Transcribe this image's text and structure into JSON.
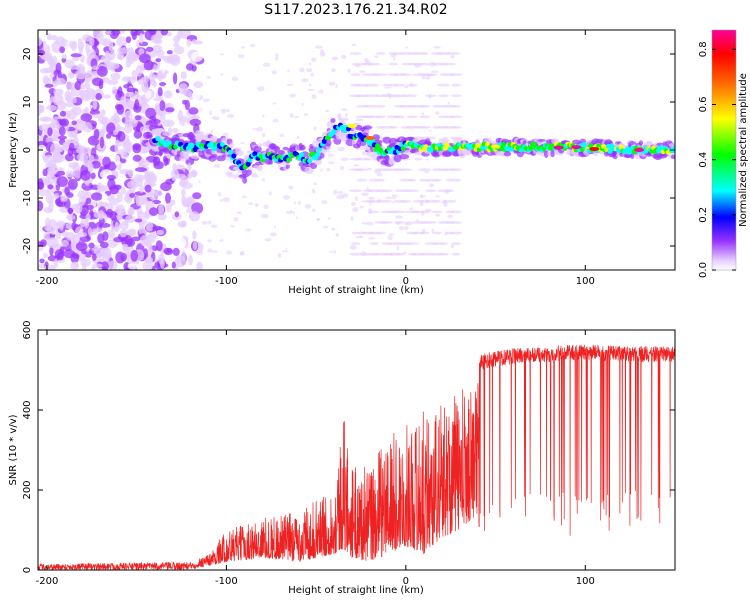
{
  "figure": {
    "title": "S117.2023.176.21.34.R02"
  },
  "chart_data": [
    {
      "type": "heatmap",
      "title": "S117.2023.176.21.34.R02",
      "xlabel": "Height of straight line (km)",
      "ylabel": "Frequency (Hz)",
      "xlim": [
        -205,
        150
      ],
      "ylim": [
        -25,
        25
      ],
      "x_ticks": [
        -200,
        -100,
        0,
        100
      ],
      "y_ticks": [
        -20,
        -10,
        0,
        10,
        20
      ],
      "grid": false,
      "colorbar": {
        "label": "Normalized spectral amplitude",
        "range": [
          0.0,
          0.87
        ],
        "ticks": [
          "0.0",
          "0.2",
          "0.4",
          "0.6",
          "0.8"
        ],
        "colormap": [
          "#ffffff",
          "#e6ccff",
          "#9933ff",
          "#0000ff",
          "#00ffff",
          "#00ff00",
          "#ffff00",
          "#ff6600",
          "#ff0000",
          "#ff0099"
        ]
      },
      "ridge": {
        "description_points_x_km": [
          -140,
          -130,
          -120,
          -110,
          -100,
          -95,
          -90,
          -85,
          -80,
          -75,
          -70,
          -65,
          -60,
          -55,
          -50,
          -45,
          -40,
          -35,
          -30,
          -25,
          -20,
          -15,
          -10,
          -5,
          0,
          10,
          20,
          30,
          40,
          50,
          60,
          70,
          80,
          90,
          100,
          110,
          120,
          130,
          140,
          150
        ],
        "frequency_hz": [
          2,
          1,
          0.5,
          0.8,
          0.5,
          -2,
          -4,
          -1,
          -1.5,
          -1,
          -2,
          -1.5,
          -1.2,
          -2,
          -1,
          2,
          4,
          5,
          3,
          3,
          2,
          0,
          -0.5,
          0,
          1,
          0.5,
          0.6,
          0.5,
          0.6,
          0.7,
          0.6,
          0.6,
          0.6,
          0.6,
          0.5,
          0.3,
          0.2,
          0.0,
          0.0,
          0.0
        ]
      }
    },
    {
      "type": "line",
      "xlabel": "Height of straight line (km)",
      "ylabel": "SNR (10 * v/v)",
      "xlim": [
        -205,
        150
      ],
      "ylim": [
        0,
        600
      ],
      "x_ticks": [
        -200,
        -100,
        0,
        100
      ],
      "y_ticks": [
        0,
        200,
        400,
        600
      ],
      "color": "#ee2222",
      "envelope_x": [
        -205,
        -120,
        -110,
        -100,
        -80,
        -60,
        -40,
        -35,
        -30,
        -20,
        -10,
        0,
        10,
        20,
        30,
        40,
        41,
        60,
        80,
        100,
        120,
        150
      ],
      "envelope_lower": [
        0,
        0,
        10,
        20,
        30,
        20,
        40,
        50,
        30,
        20,
        40,
        60,
        40,
        80,
        100,
        140,
        80,
        80,
        80,
        80,
        80,
        80
      ],
      "envelope_upper": [
        15,
        20,
        40,
        100,
        130,
        150,
        200,
        400,
        260,
        260,
        340,
        360,
        400,
        420,
        450,
        480,
        540,
        555,
        560,
        565,
        560,
        560
      ]
    }
  ]
}
